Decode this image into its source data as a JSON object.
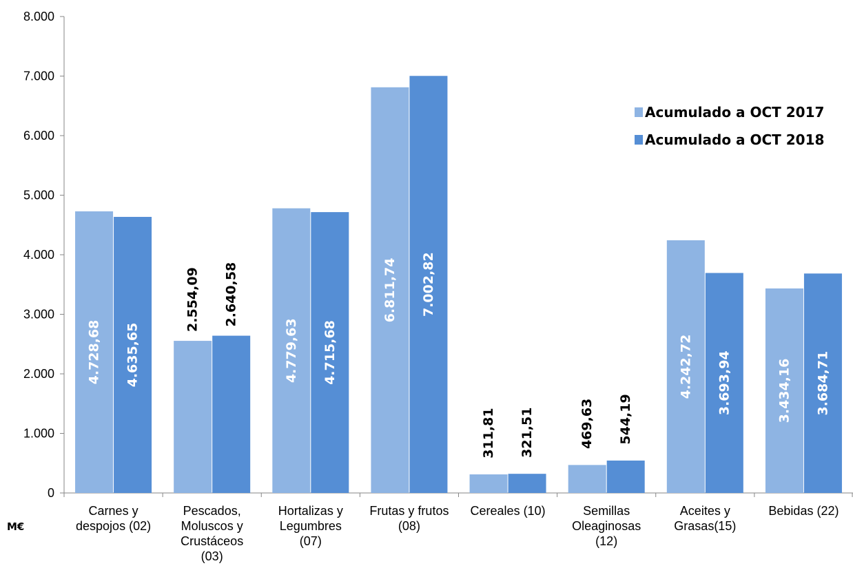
{
  "chart_data": {
    "type": "bar",
    "categories": [
      [
        "Carnes y",
        "despojos (02)"
      ],
      [
        "Pescados,",
        "Moluscos y",
        "Crustáceos",
        "(03)"
      ],
      [
        "Hortalizas y",
        "Legumbres",
        "(07)"
      ],
      [
        "Frutas y frutos",
        "(08)"
      ],
      [
        "Cereales (10)"
      ],
      [
        "Semillas",
        "Oleaginosas",
        "(12)"
      ],
      [
        "Aceites y",
        "Grasas(15)"
      ],
      [
        "Bebidas (22)"
      ]
    ],
    "series": [
      {
        "name": "Acumulado a OCT 2017",
        "color": "#8EB4E3",
        "values": [
          4728.68,
          2554.09,
          4779.63,
          6811.74,
          311.81,
          469.63,
          4242.72,
          3434.16
        ],
        "labels": [
          "4.728,68",
          "2.554,09",
          "4.779,63",
          "6.811,74",
          "311,81",
          "469,63",
          "4.242,72",
          "3.434,16"
        ]
      },
      {
        "name": "Acumulado a OCT 2018",
        "color": "#558ED5",
        "values": [
          4635.65,
          2640.58,
          4715.68,
          7002.82,
          321.51,
          544.19,
          3693.94,
          3684.71
        ],
        "labels": [
          "4.635,65",
          "2.640,58",
          "4.715,68",
          "7.002,82",
          "321,51",
          "544,19",
          "3.693,94",
          "3.684,71"
        ]
      }
    ],
    "y_ticks": [
      0,
      1000,
      2000,
      3000,
      4000,
      5000,
      6000,
      7000,
      8000
    ],
    "y_tick_labels": [
      "0",
      "1.000",
      "2.000",
      "3.000",
      "4.000",
      "5.000",
      "6.000",
      "7.000",
      "8.000"
    ],
    "ylim": [
      0,
      8000
    ],
    "unit_label": "M€",
    "legend_position": "top-right",
    "grid": false
  }
}
